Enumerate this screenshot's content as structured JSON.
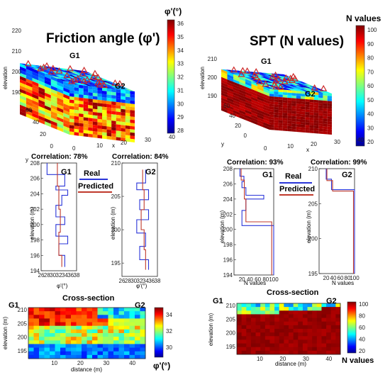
{
  "left": {
    "title": "Friction angle (φ')",
    "colorbar": {
      "title": "φ'(°)",
      "ticks": [
        "36",
        "35",
        "34",
        "33",
        "32",
        "31",
        "30",
        "29",
        "28"
      ]
    },
    "block3d": {
      "zlabel": "elevation",
      "yz_ticks": [
        "220",
        "210",
        "200",
        "190"
      ],
      "ylabel": "y",
      "y_ticks": [
        "0",
        "20",
        "40",
        "60"
      ],
      "xlabel": "x",
      "x_ticks": [
        "0",
        "10",
        "20",
        "30",
        "40"
      ],
      "g1": "G1",
      "g2": "G2"
    },
    "profiles": {
      "ylabel": "elevation (m)",
      "xlabel": "φ'(°)",
      "g1_corr": "Correlation: 78%",
      "g2_corr": "Correlation: 84%",
      "g1": "G1",
      "g2": "G2",
      "g1_yticks": [
        "208",
        "206",
        "204",
        "202",
        "200",
        "198",
        "196",
        "194"
      ],
      "g2_yticks": [
        "210",
        "205",
        "200",
        "195"
      ],
      "xticks": [
        "26",
        "28",
        "30",
        "32",
        "34",
        "36",
        "38"
      ]
    },
    "legend": {
      "real": "Real",
      "predicted": "Predicted"
    },
    "cross": {
      "title": "Cross-section",
      "g1": "G1",
      "g2": "G2",
      "ylabel": "elevation (m)",
      "xlabel": "distance (m)",
      "yticks": [
        "210",
        "205",
        "200",
        "195"
      ],
      "xticks": [
        "10",
        "20",
        "30",
        "40"
      ],
      "cbar_ticks": [
        "34",
        "32",
        "30"
      ],
      "cbar_label": "φ'(°)"
    }
  },
  "right": {
    "title": "SPT (N values)",
    "colorbar": {
      "title": "N values",
      "ticks": [
        "100",
        "90",
        "80",
        "70",
        "60",
        "50",
        "40",
        "30",
        "20"
      ]
    },
    "block3d": {
      "zlabel": "elevation",
      "yz_ticks": [
        "210",
        "200",
        "190"
      ],
      "ylabel": "y",
      "y_ticks": [
        "0",
        "20",
        "40",
        "60"
      ],
      "xlabel": "x",
      "x_ticks": [
        "0",
        "10",
        "20",
        "30",
        "40"
      ],
      "g1": "G1",
      "g2": "G2"
    },
    "profiles": {
      "ylabel": "elevation (m)",
      "xlabel": "N values",
      "g1_corr": "Correlation: 93%",
      "g2_corr": "Correlation: 99%",
      "g1": "G1",
      "g2": "G2",
      "g1_yticks": [
        "208",
        "206",
        "204",
        "202",
        "200",
        "198",
        "196",
        "194"
      ],
      "g2_yticks": [
        "210",
        "205",
        "200",
        "195"
      ],
      "xticks": [
        "20",
        "40",
        "60",
        "80",
        "100"
      ]
    },
    "legend": {
      "real": "Real",
      "predicted": "Predicted"
    },
    "cross": {
      "title": "Cross-section",
      "g1": "G1",
      "g2": "G2",
      "ylabel": "elevation (m)",
      "xlabel": "distance (m)",
      "yticks": [
        "210",
        "205",
        "200",
        "195"
      ],
      "xticks": [
        "10",
        "20",
        "30",
        "40"
      ],
      "cbar_ticks": [
        "100",
        "80",
        "60",
        "40",
        "20"
      ],
      "cbar_label": "N values"
    }
  },
  "colors": {
    "real": "#2a35d8",
    "predicted": "#c0392b",
    "marker": "#cc2a2a"
  },
  "chart_data": [
    {
      "type": "line",
      "title": "G1",
      "subtitle": "Correlation: 78%",
      "xlabel": "φ'(°)",
      "ylabel": "elevation (m)",
      "xlim": [
        26,
        38
      ],
      "ylim": [
        194,
        208
      ],
      "series": [
        {
          "name": "Real",
          "x": [
            28,
            28,
            34,
            34,
            31,
            31,
            35,
            35,
            33,
            33,
            31,
            31,
            34,
            34,
            31,
            31,
            35,
            35,
            32,
            32,
            34,
            34
          ],
          "y": [
            208,
            206.5,
            206.5,
            205,
            205,
            204.5,
            204.5,
            203.8,
            203.8,
            202.5,
            202.5,
            201,
            201,
            200,
            200,
            198.5,
            198.5,
            197.5,
            197.5,
            196,
            196,
            194.5
          ]
        },
        {
          "name": "Predicted",
          "x": [
            31.5,
            31.5,
            32,
            32,
            32.5,
            32.5,
            32,
            32,
            33,
            33
          ],
          "y": [
            208,
            205,
            205,
            202,
            202,
            199,
            199,
            196,
            196,
            194.5
          ]
        }
      ]
    },
    {
      "type": "line",
      "title": "G2",
      "subtitle": "Correlation: 84%",
      "xlabel": "φ'(°)",
      "ylabel": "elevation (m)",
      "xlim": [
        26,
        38
      ],
      "ylim": [
        193,
        210
      ],
      "series": [
        {
          "name": "Real",
          "x": [
            34,
            34,
            31,
            31,
            35,
            35,
            32,
            32,
            35,
            35,
            31,
            31,
            34,
            34,
            32,
            32,
            35,
            35
          ],
          "y": [
            209,
            207,
            207,
            206,
            206,
            204.5,
            204.5,
            203,
            203,
            201.5,
            201.5,
            199.5,
            199.5,
            197.5,
            197.5,
            195.5,
            195.5,
            194
          ]
        },
        {
          "name": "Predicted",
          "x": [
            33,
            33,
            33.5,
            33.5,
            32.5,
            32.5,
            33.5,
            33.5,
            34,
            34
          ],
          "y": [
            209,
            206,
            206,
            203,
            203,
            200,
            200,
            197,
            197,
            194
          ]
        }
      ]
    },
    {
      "type": "line",
      "title": "G1",
      "subtitle": "Correlation: 93%",
      "xlabel": "N values",
      "ylabel": "elevation (m)",
      "xlim": [
        0,
        100
      ],
      "ylim": [
        194,
        208
      ],
      "series": [
        {
          "name": "Real",
          "x": [
            15,
            15,
            25,
            25,
            20,
            20,
            30,
            30,
            75,
            75,
            30,
            30,
            20,
            20,
            100,
            100
          ],
          "y": [
            208,
            207,
            207,
            206.3,
            206.3,
            205.5,
            205.5,
            204.5,
            204.5,
            204,
            204,
            202.5,
            202.5,
            200.5,
            200.5,
            194
          ]
        },
        {
          "name": "Predicted",
          "x": [
            18,
            18,
            26,
            26,
            30,
            30,
            95,
            95
          ],
          "y": [
            208,
            206.5,
            206.5,
            204,
            204,
            201,
            201,
            194
          ]
        }
      ]
    },
    {
      "type": "line",
      "title": "G2",
      "subtitle": "Correlation: 99%",
      "xlabel": "N values",
      "ylabel": "elevation (m)",
      "xlim": [
        0,
        100
      ],
      "ylim": [
        195,
        210
      ],
      "series": [
        {
          "name": "Real",
          "x": [
            20,
            20,
            35,
            35,
            100,
            100
          ],
          "y": [
            210,
            208.5,
            208.5,
            207,
            207,
            195
          ]
        },
        {
          "name": "Predicted",
          "x": [
            22,
            22,
            38,
            38,
            97,
            97
          ],
          "y": [
            210,
            208.3,
            208.3,
            206.8,
            206.8,
            195
          ]
        }
      ]
    },
    {
      "type": "heatmap",
      "title": "Cross-section",
      "xlabel": "distance (m)",
      "ylabel": "elevation (m)",
      "xlim": [
        0,
        45
      ],
      "ylim": [
        192,
        211
      ],
      "colorbar_label": "φ'(°)",
      "colorbar_range": [
        28,
        36
      ]
    },
    {
      "type": "heatmap",
      "title": "Cross-section",
      "xlabel": "distance (m)",
      "ylabel": "elevation (m)",
      "xlim": [
        0,
        45
      ],
      "ylim": [
        192,
        211
      ],
      "colorbar_label": "N values",
      "colorbar_range": [
        20,
        100
      ]
    }
  ]
}
